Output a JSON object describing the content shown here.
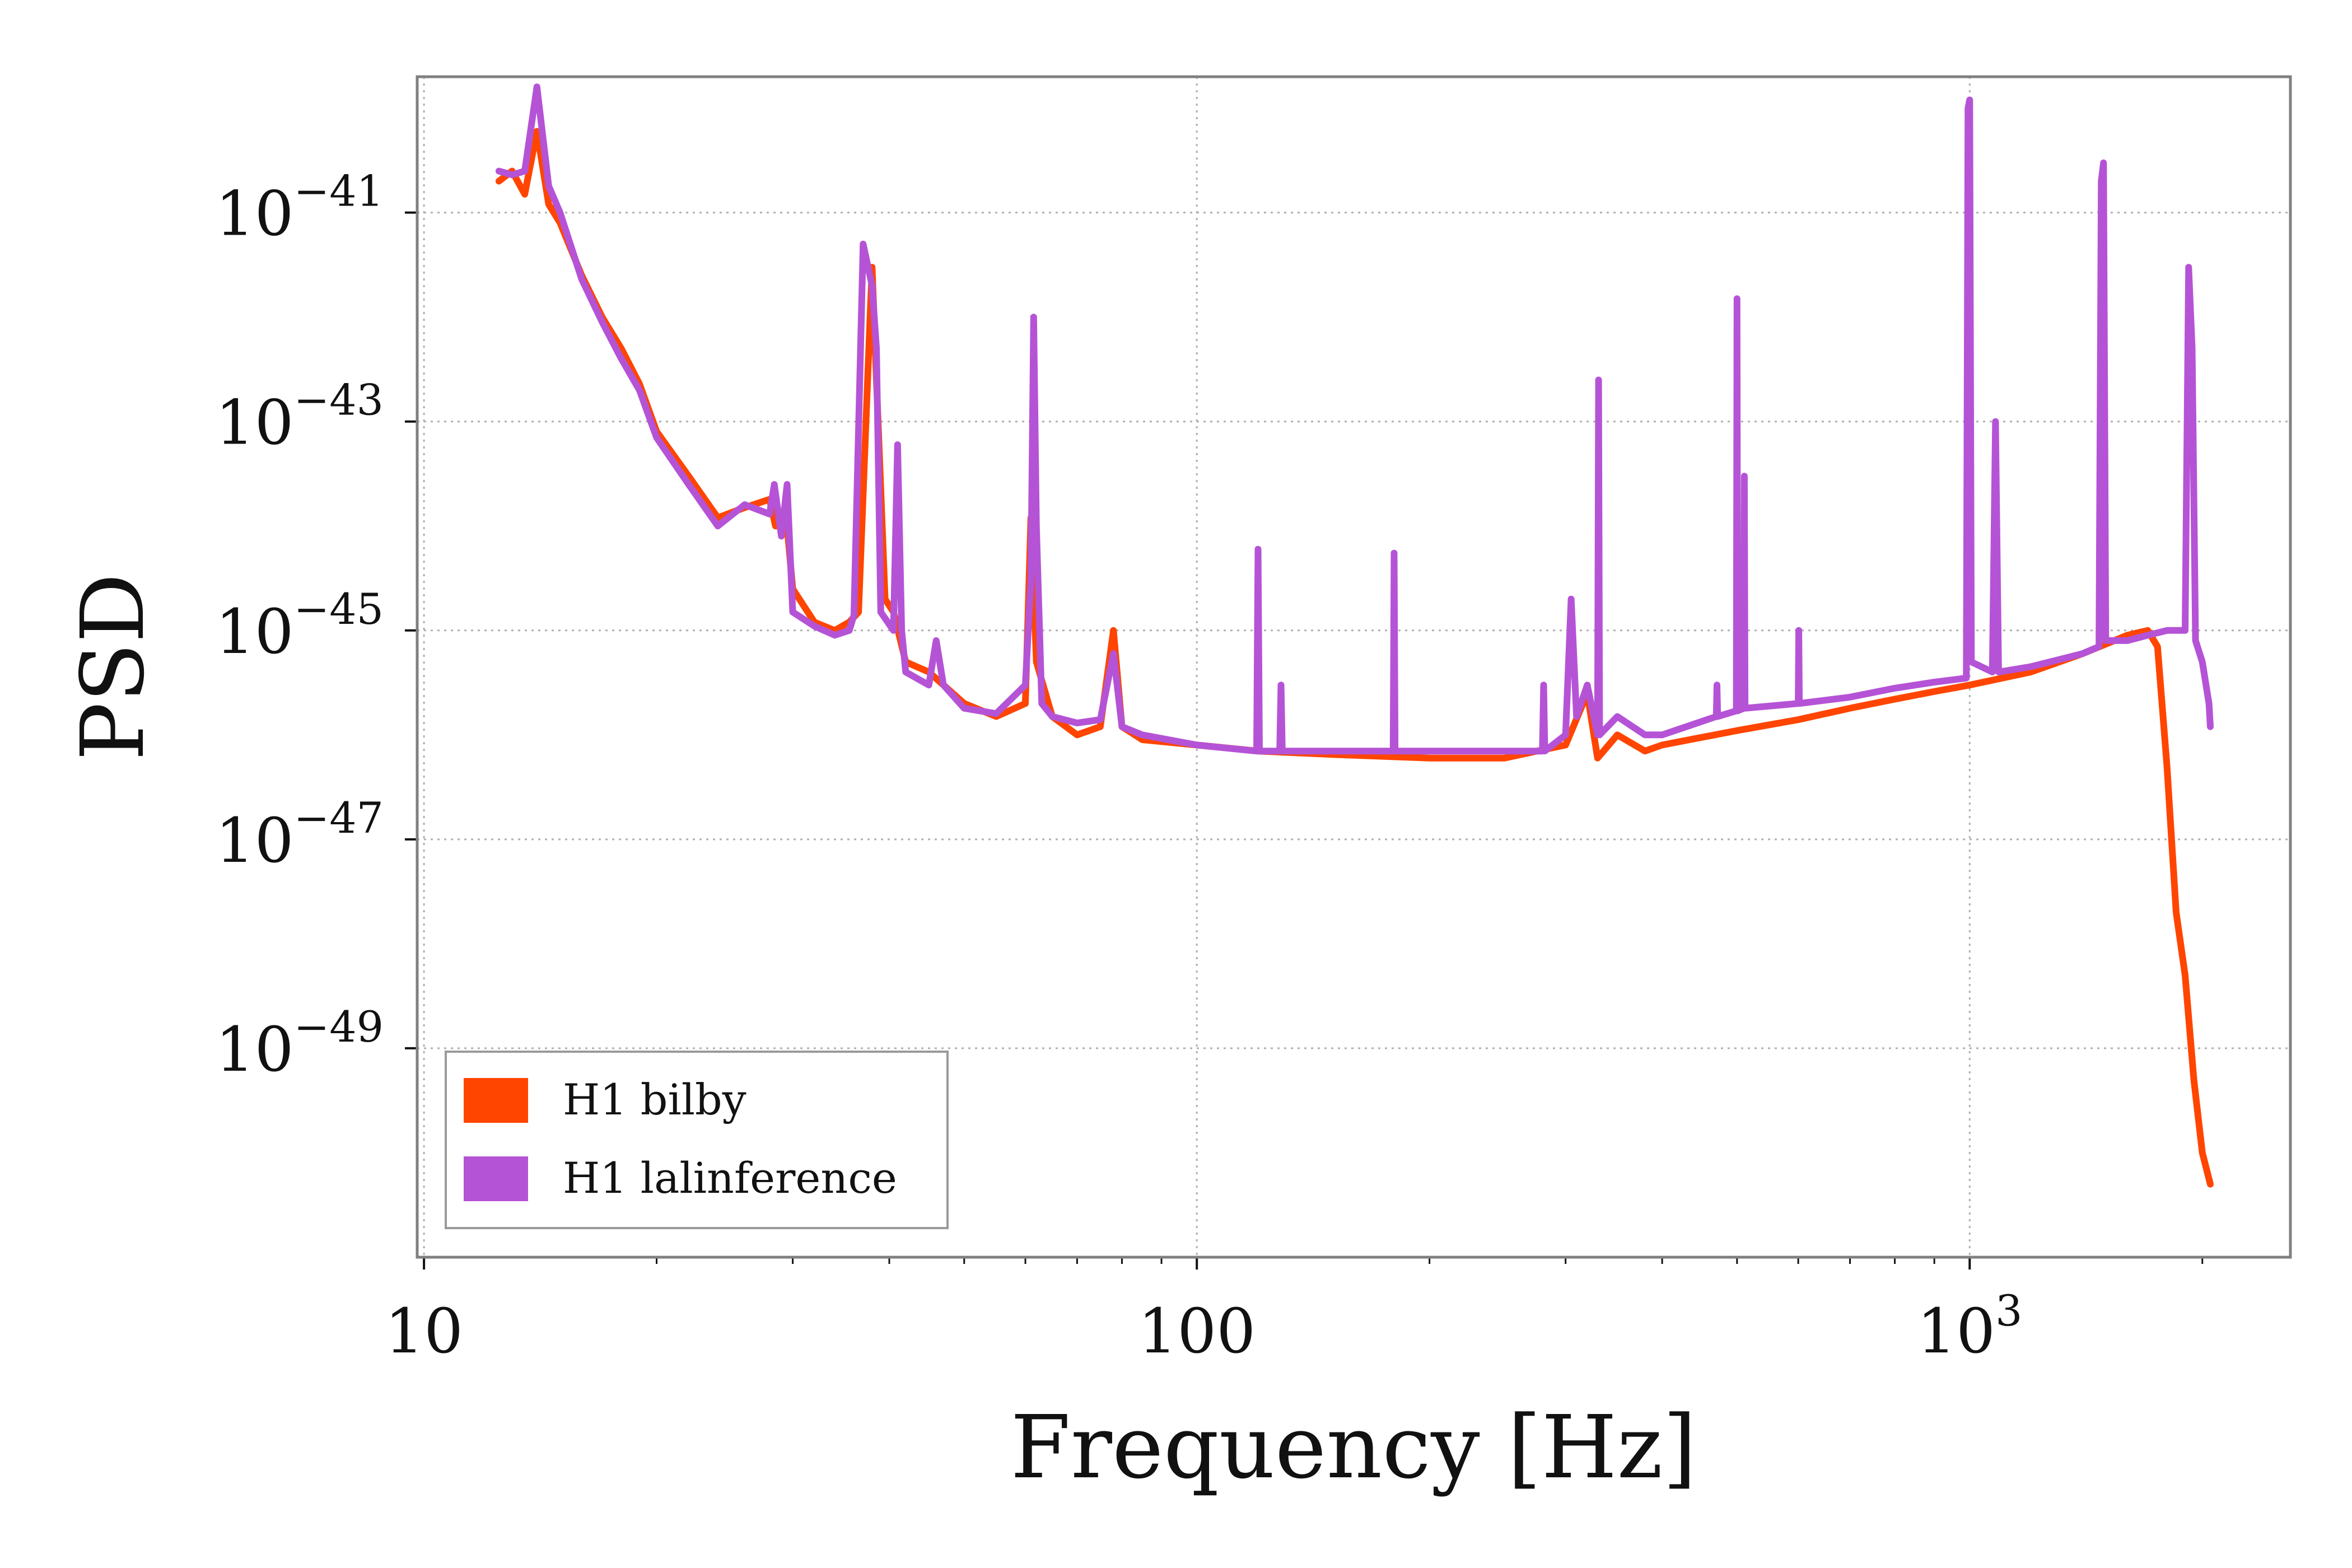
{
  "chart_data": {
    "type": "line",
    "xlabel": "Frequency [Hz]",
    "ylabel": "PSD",
    "xscale": "log",
    "yscale": "log",
    "xlim": [
      9.8,
      2600
    ],
    "ylim": [
      1e-51,
      2e-40
    ],
    "x_ticks": [
      {
        "value": 10,
        "base": "10",
        "exp": ""
      },
      {
        "value": 100,
        "base": "100",
        "exp": ""
      },
      {
        "value": 1000,
        "base": "10",
        "exp": "3"
      }
    ],
    "y_ticks": [
      {
        "value": 1e-41,
        "base": "10",
        "exp": "−41"
      },
      {
        "value": 1e-43,
        "base": "10",
        "exp": "−43"
      },
      {
        "value": 1e-45,
        "base": "10",
        "exp": "−45"
      },
      {
        "value": 1e-47,
        "base": "10",
        "exp": "−47"
      },
      {
        "value": 1e-49,
        "base": "10",
        "exp": "−49"
      }
    ],
    "grid": true,
    "legend_position": "lower-left",
    "series": [
      {
        "name": "H1 bilby",
        "color": "#ff4500",
        "points": [
          [
            12.5,
            2e-41
          ],
          [
            13.0,
            2.5e-41
          ],
          [
            13.5,
            1.5e-41
          ],
          [
            14.0,
            6e-41
          ],
          [
            14.5,
            1.2e-41
          ],
          [
            15.0,
            8e-42
          ],
          [
            16.0,
            2.5e-42
          ],
          [
            17.0,
            1e-42
          ],
          [
            18.0,
            5e-43
          ],
          [
            19.0,
            2.3e-43
          ],
          [
            20.0,
            8e-44
          ],
          [
            22.0,
            3e-44
          ],
          [
            24.0,
            1.2e-44
          ],
          [
            26.0,
            1.5e-44
          ],
          [
            28.0,
            1.8e-44
          ],
          [
            28.5,
            1e-44
          ],
          [
            29.5,
            1e-44
          ],
          [
            30.0,
            2.5e-45
          ],
          [
            32.0,
            1.2e-45
          ],
          [
            34.0,
            1e-45
          ],
          [
            35.5,
            1.2e-45
          ],
          [
            36.5,
            1.5e-45
          ],
          [
            37.5,
            2.5e-43
          ],
          [
            38.0,
            3e-42
          ],
          [
            38.5,
            2.5e-43
          ],
          [
            39.5,
            2e-45
          ],
          [
            40.5,
            1.5e-45
          ],
          [
            42.0,
            5e-46
          ],
          [
            45.0,
            4e-46
          ],
          [
            50.0,
            2e-46
          ],
          [
            55.0,
            1.5e-46
          ],
          [
            60.0,
            2e-46
          ],
          [
            61.0,
            1.2e-44
          ],
          [
            62.0,
            5e-46
          ],
          [
            65.0,
            1.5e-46
          ],
          [
            70.0,
            1e-46
          ],
          [
            75.0,
            1.2e-46
          ],
          [
            78.0,
            1e-45
          ],
          [
            80.0,
            1.2e-46
          ],
          [
            85.0,
            9e-47
          ],
          [
            100.0,
            8e-47
          ],
          [
            120.0,
            7e-47
          ],
          [
            150.0,
            6.5e-47
          ],
          [
            200.0,
            6e-47
          ],
          [
            250.0,
            6e-47
          ],
          [
            300.0,
            8e-47
          ],
          [
            320.0,
            2.5e-46
          ],
          [
            330.0,
            6e-47
          ],
          [
            350.0,
            1e-46
          ],
          [
            380.0,
            7e-47
          ],
          [
            400.0,
            8e-47
          ],
          [
            500.0,
            1.1e-46
          ],
          [
            600.0,
            1.4e-46
          ],
          [
            700.0,
            1.8e-46
          ],
          [
            800.0,
            2.2e-46
          ],
          [
            900.0,
            2.6e-46
          ],
          [
            1000.0,
            3e-46
          ],
          [
            1200.0,
            4e-46
          ],
          [
            1400.0,
            6e-46
          ],
          [
            1600.0,
            9e-46
          ],
          [
            1700.0,
            1e-45
          ],
          [
            1750.0,
            7e-46
          ],
          [
            1800.0,
            5e-47
          ],
          [
            1850.0,
            2e-48
          ],
          [
            1900.0,
            5e-49
          ],
          [
            1950.0,
            5e-50
          ],
          [
            2000.0,
            1e-50
          ],
          [
            2048.0,
            5e-51
          ]
        ]
      },
      {
        "name": "H1 lalinference",
        "color": "#b553d6",
        "points": [
          [
            12.5,
            2.5e-41
          ],
          [
            13.0,
            2.3e-41
          ],
          [
            13.5,
            2.5e-41
          ],
          [
            14.0,
            1.6e-40
          ],
          [
            14.5,
            1.8e-41
          ],
          [
            15.0,
            1e-41
          ],
          [
            16.0,
            2.3e-42
          ],
          [
            17.0,
            9e-43
          ],
          [
            18.0,
            4e-43
          ],
          [
            19.0,
            2e-43
          ],
          [
            20.0,
            7e-44
          ],
          [
            22.0,
            2.5e-44
          ],
          [
            24.0,
            1e-44
          ],
          [
            26.0,
            1.6e-44
          ],
          [
            28.0,
            1.3e-44
          ],
          [
            28.4,
            2.5e-44
          ],
          [
            29.0,
            8e-45
          ],
          [
            29.5,
            2.5e-44
          ],
          [
            30.0,
            1.5e-45
          ],
          [
            32.0,
            1.1e-45
          ],
          [
            34.0,
            9e-46
          ],
          [
            35.5,
            1e-45
          ],
          [
            36.0,
            1.4e-45
          ],
          [
            37.0,
            5e-42
          ],
          [
            38.0,
            2e-42
          ],
          [
            38.5,
            5e-43
          ],
          [
            39.0,
            1.5e-45
          ],
          [
            40.5,
            1e-45
          ],
          [
            41.0,
            6e-44
          ],
          [
            41.5,
            1e-45
          ],
          [
            42.0,
            4e-46
          ],
          [
            45.0,
            3e-46
          ],
          [
            46.0,
            8e-46
          ],
          [
            47.0,
            3e-46
          ],
          [
            50.0,
            1.8e-46
          ],
          [
            55.0,
            1.6e-46
          ],
          [
            60.0,
            3e-46
          ],
          [
            61.0,
            3e-45
          ],
          [
            61.5,
            1e-42
          ],
          [
            62.0,
            1e-44
          ],
          [
            63.0,
            2e-46
          ],
          [
            65.0,
            1.5e-46
          ],
          [
            70.0,
            1.3e-46
          ],
          [
            75.0,
            1.4e-46
          ],
          [
            78.0,
            6e-46
          ],
          [
            80.0,
            1.2e-46
          ],
          [
            85.0,
            1e-46
          ],
          [
            100.0,
            8e-47
          ],
          [
            119.5,
            7e-47
          ],
          [
            120.0,
            6e-45
          ],
          [
            120.5,
            7e-47
          ],
          [
            128.0,
            7e-47
          ],
          [
            128.5,
            3e-46
          ],
          [
            129.0,
            7e-47
          ],
          [
            150.0,
            7e-47
          ],
          [
            179.5,
            7e-47
          ],
          [
            180.0,
            5.5e-45
          ],
          [
            180.5,
            7e-47
          ],
          [
            200.0,
            7e-47
          ],
          [
            250.0,
            7e-47
          ],
          [
            280.0,
            7e-47
          ],
          [
            281.0,
            3e-46
          ],
          [
            282.0,
            7e-47
          ],
          [
            300.0,
            1e-46
          ],
          [
            305.0,
            2e-45
          ],
          [
            310.0,
            1.5e-46
          ],
          [
            320.0,
            3e-46
          ],
          [
            330.0,
            1e-46
          ],
          [
            331.0,
            2.5e-43
          ],
          [
            332.0,
            1e-46
          ],
          [
            350.0,
            1.5e-46
          ],
          [
            380.0,
            1e-46
          ],
          [
            400.0,
            1e-46
          ],
          [
            470.0,
            1.5e-46
          ],
          [
            471.0,
            3e-46
          ],
          [
            472.0,
            1.5e-46
          ],
          [
            499.0,
            1.7e-46
          ],
          [
            500.0,
            1.5e-42
          ],
          [
            501.0,
            1.7e-46
          ],
          [
            510.0,
            1.8e-46
          ],
          [
            511.0,
            3e-44
          ],
          [
            512.0,
            1.8e-46
          ],
          [
            600.0,
            2e-46
          ],
          [
            601.0,
            1e-45
          ],
          [
            602.0,
            2e-46
          ],
          [
            700.0,
            2.3e-46
          ],
          [
            800.0,
            2.8e-46
          ],
          [
            900.0,
            3.2e-46
          ],
          [
            990.0,
            3.5e-46
          ],
          [
            995.0,
            1e-40
          ],
          [
            1000.0,
            1.2e-40
          ],
          [
            1005.0,
            5e-46
          ],
          [
            1070.0,
            4e-46
          ],
          [
            1080.0,
            1e-43
          ],
          [
            1090.0,
            4e-46
          ],
          [
            1200.0,
            4.5e-46
          ],
          [
            1400.0,
            6e-46
          ],
          [
            1470.0,
            7e-46
          ],
          [
            1480.0,
            2e-41
          ],
          [
            1490.0,
            3e-41
          ],
          [
            1500.0,
            8e-46
          ],
          [
            1600.0,
            8e-46
          ],
          [
            1700.0,
            9e-46
          ],
          [
            1800.0,
            1e-45
          ],
          [
            1900.0,
            1e-45
          ],
          [
            1920.0,
            3e-42
          ],
          [
            1940.0,
            5e-43
          ],
          [
            1960.0,
            8e-46
          ],
          [
            2000.0,
            5e-46
          ],
          [
            2040.0,
            2e-46
          ],
          [
            2048.0,
            1.2e-46
          ]
        ]
      }
    ]
  }
}
